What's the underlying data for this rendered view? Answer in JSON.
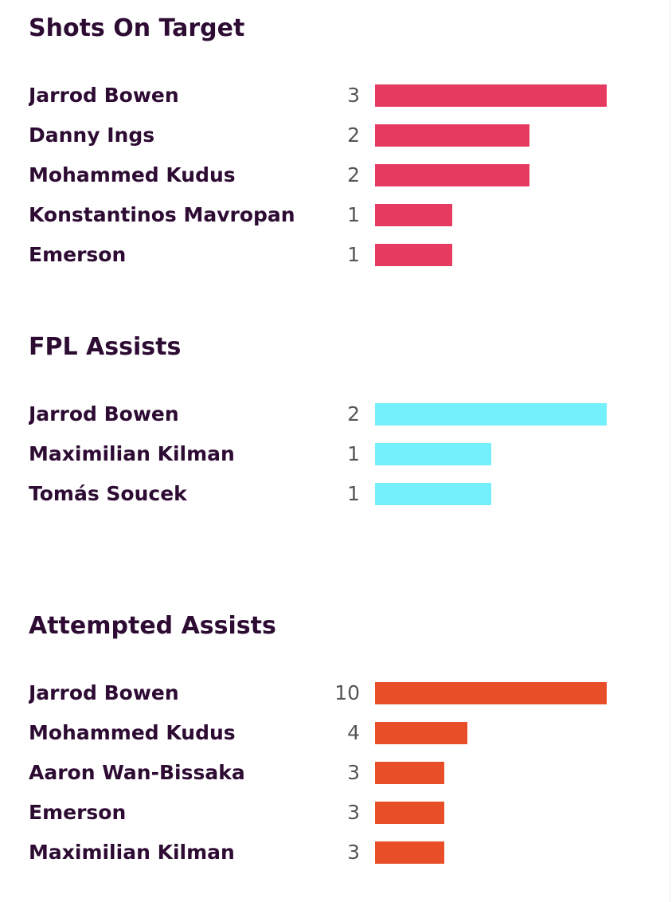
{
  "chart_data": [
    {
      "type": "bar",
      "orientation": "horizontal",
      "title": "Shots On Target",
      "color": "#e63a61",
      "categories": [
        "Jarrod Bowen",
        "Danny Ings",
        "Mohammed Kudus",
        "Konstantinos Mavropan",
        "Emerson"
      ],
      "values": [
        3,
        2,
        2,
        1,
        1
      ]
    },
    {
      "type": "bar",
      "orientation": "horizontal",
      "title": "FPL Assists",
      "color": "#73f0fb",
      "categories": [
        "Jarrod Bowen",
        "Maximilian Kilman",
        "Tomás Soucek"
      ],
      "values": [
        2,
        1,
        1
      ]
    },
    {
      "type": "bar",
      "orientation": "horizontal",
      "title": "Attempted Assists",
      "color": "#e84e27",
      "categories": [
        "Jarrod Bowen",
        "Mohammed Kudus",
        "Aaron Wan-Bissaka",
        "Emerson",
        "Maximilian Kilman"
      ],
      "values": [
        10,
        4,
        3,
        3,
        3
      ]
    }
  ]
}
